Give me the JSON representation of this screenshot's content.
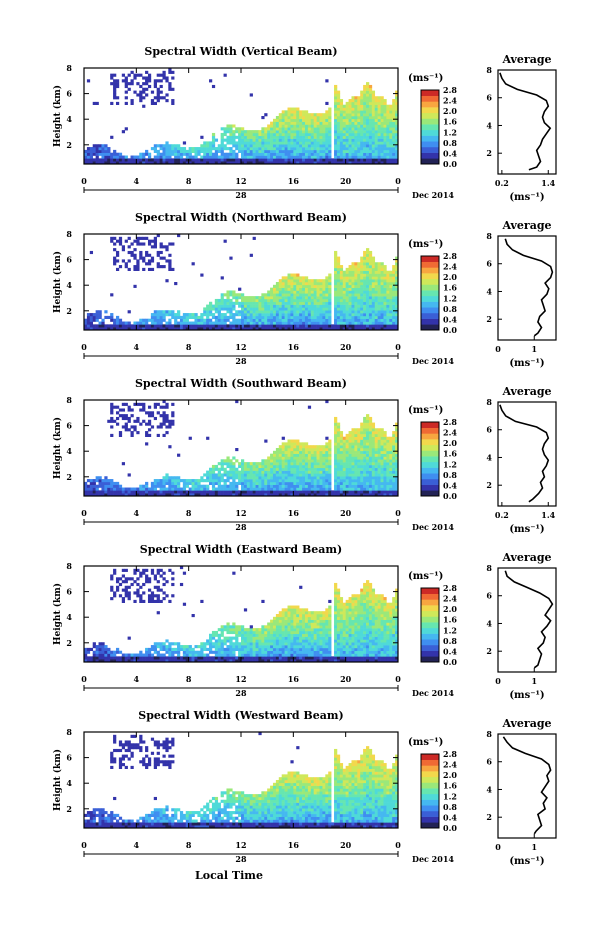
{
  "figure": {
    "xlabel": "Local Time",
    "ylabel": "Height (km)",
    "date_label": "Dec 2014",
    "day_label": "28",
    "colorbar_unit": "(ms⁻¹)",
    "avg_title": "Average",
    "avg_xunit": "(ms⁻¹)"
  },
  "colors": {
    "colormap": [
      "#222255",
      "#3333aa",
      "#3a5fd6",
      "#3f8ef0",
      "#45b8f0",
      "#4fdad8",
      "#66e6b0",
      "#9ae87a",
      "#cfe85a",
      "#f2d84c",
      "#f8a640",
      "#f06a34",
      "#cc2a26"
    ]
  },
  "chart_data": [
    {
      "type": "heatmap",
      "panel": "vertical",
      "title": "Spectral Width (Vertical Beam)",
      "x_ticks": [
        "0",
        "4",
        "8",
        "12",
        "16",
        "20",
        "0"
      ],
      "xlim": [
        0,
        24
      ],
      "y_ticks": [
        "2",
        "4",
        "6",
        "8"
      ],
      "ylim": [
        0.5,
        8
      ],
      "colorbar": {
        "ticks": [
          "0.0",
          "0.4",
          "0.8",
          "1.2",
          "1.6",
          "2.0",
          "2.4",
          "2.8"
        ],
        "range": [
          0,
          2.8
        ]
      },
      "average_profile": {
        "title": "Average",
        "x_ticks": [
          "0.2",
          "1.4"
        ],
        "xlim": [
          0.1,
          1.6
        ],
        "y_ticks": [
          "2",
          "4",
          "6",
          "8"
        ],
        "ylim": [
          0.5,
          8
        ],
        "height": [
          0.8,
          1.0,
          1.4,
          1.8,
          2.2,
          2.6,
          3.0,
          3.4,
          3.8,
          4.2,
          4.6,
          5.0,
          5.4,
          5.8,
          6.2,
          6.6,
          7.0,
          7.4,
          7.8
        ],
        "width": [
          0.9,
          1.1,
          1.2,
          1.15,
          1.1,
          1.2,
          1.25,
          1.35,
          1.45,
          1.3,
          1.25,
          1.3,
          1.4,
          1.35,
          1.1,
          0.6,
          0.3,
          0.2,
          0.15
        ]
      }
    },
    {
      "type": "heatmap",
      "panel": "northward",
      "title": "Spectral Width (Northward Beam)",
      "x_ticks": [
        "0",
        "4",
        "8",
        "12",
        "16",
        "20",
        "0"
      ],
      "xlim": [
        0,
        24
      ],
      "y_ticks": [
        "2",
        "4",
        "6",
        "8"
      ],
      "ylim": [
        0.5,
        8
      ],
      "colorbar": {
        "ticks": [
          "0.0",
          "0.4",
          "0.8",
          "1.2",
          "1.6",
          "2.0",
          "2.4",
          "2.8"
        ],
        "range": [
          0,
          2.8
        ]
      },
      "average_profile": {
        "title": "Average",
        "x_ticks": [
          "0",
          "1"
        ],
        "xlim": [
          0,
          1.6
        ],
        "y_ticks": [
          "2",
          "4",
          "6",
          "8"
        ],
        "ylim": [
          0.5,
          8
        ],
        "height": [
          0.8,
          1.0,
          1.4,
          1.8,
          2.2,
          2.6,
          3.0,
          3.4,
          3.8,
          4.2,
          4.6,
          5.0,
          5.4,
          5.8,
          6.2,
          6.6,
          7.0,
          7.4,
          7.8
        ],
        "width": [
          1.0,
          1.1,
          1.2,
          1.1,
          1.15,
          1.3,
          1.25,
          1.2,
          1.35,
          1.4,
          1.3,
          1.45,
          1.5,
          1.45,
          1.2,
          0.7,
          0.4,
          0.25,
          0.2
        ]
      }
    },
    {
      "type": "heatmap",
      "panel": "southward",
      "title": "Spectral Width (Southward Beam)",
      "x_ticks": [
        "0",
        "4",
        "8",
        "12",
        "16",
        "20",
        "0"
      ],
      "xlim": [
        0,
        24
      ],
      "y_ticks": [
        "2",
        "4",
        "6",
        "8"
      ],
      "ylim": [
        0.5,
        8
      ],
      "colorbar": {
        "ticks": [
          "0.0",
          "0.4",
          "0.8",
          "1.2",
          "1.6",
          "2.0",
          "2.4",
          "2.8"
        ],
        "range": [
          0,
          2.8
        ]
      },
      "average_profile": {
        "title": "Average",
        "x_ticks": [
          "0.2",
          "1.4"
        ],
        "xlim": [
          0.1,
          1.6
        ],
        "y_ticks": [
          "2",
          "4",
          "6",
          "8"
        ],
        "ylim": [
          0.5,
          8
        ],
        "height": [
          0.8,
          1.0,
          1.4,
          1.8,
          2.2,
          2.6,
          3.0,
          3.4,
          3.8,
          4.2,
          4.6,
          5.0,
          5.4,
          5.8,
          6.2,
          6.6,
          7.0,
          7.4,
          7.8
        ],
        "width": [
          0.9,
          1.0,
          1.15,
          1.25,
          1.2,
          1.3,
          1.25,
          1.35,
          1.4,
          1.3,
          1.25,
          1.3,
          1.4,
          1.35,
          1.1,
          0.55,
          0.3,
          0.2,
          0.15
        ]
      }
    },
    {
      "type": "heatmap",
      "panel": "eastward",
      "title": "Spectral Width (Eastward Beam)",
      "x_ticks": [
        "0",
        "4",
        "8",
        "12",
        "16",
        "20",
        "0"
      ],
      "xlim": [
        0,
        24
      ],
      "y_ticks": [
        "2",
        "4",
        "6",
        "8"
      ],
      "ylim": [
        0.5,
        8
      ],
      "colorbar": {
        "ticks": [
          "0.0",
          "0.4",
          "0.8",
          "1.2",
          "1.6",
          "2.0",
          "2.4",
          "2.8"
        ],
        "range": [
          0,
          2.8
        ]
      },
      "average_profile": {
        "title": "Average",
        "x_ticks": [
          "0",
          "1"
        ],
        "xlim": [
          0,
          1.6
        ],
        "y_ticks": [
          "2",
          "4",
          "6",
          "8"
        ],
        "ylim": [
          0.5,
          8
        ],
        "height": [
          0.8,
          1.0,
          1.4,
          1.8,
          2.2,
          2.6,
          3.0,
          3.4,
          3.8,
          4.2,
          4.6,
          5.0,
          5.4,
          5.8,
          6.2,
          6.6,
          7.0,
          7.4,
          7.8
        ],
        "width": [
          1.0,
          1.1,
          1.15,
          1.2,
          1.1,
          1.25,
          1.3,
          1.2,
          1.35,
          1.45,
          1.3,
          1.4,
          1.5,
          1.4,
          1.15,
          0.8,
          0.45,
          0.25,
          0.2
        ]
      }
    },
    {
      "type": "heatmap",
      "panel": "westward",
      "title": "Spectral Width (Westward Beam)",
      "x_ticks": [
        "0",
        "4",
        "8",
        "12",
        "16",
        "20",
        "0"
      ],
      "xlim": [
        0,
        24
      ],
      "y_ticks": [
        "2",
        "4",
        "6",
        "8"
      ],
      "ylim": [
        0.5,
        8
      ],
      "colorbar": {
        "ticks": [
          "0.0",
          "0.4",
          "0.8",
          "1.2",
          "1.6",
          "2.0",
          "2.4",
          "2.8"
        ],
        "range": [
          0,
          2.8
        ]
      },
      "average_profile": {
        "title": "Average",
        "x_ticks": [
          "0",
          "1"
        ],
        "xlim": [
          0,
          1.6
        ],
        "y_ticks": [
          "2",
          "4",
          "6",
          "8"
        ],
        "ylim": [
          0.5,
          8
        ],
        "height": [
          0.8,
          1.0,
          1.4,
          1.8,
          2.2,
          2.6,
          3.0,
          3.4,
          3.8,
          4.2,
          4.6,
          5.0,
          5.4,
          5.8,
          6.2,
          6.6,
          7.0,
          7.4,
          7.8
        ],
        "width": [
          1.0,
          1.05,
          1.2,
          1.15,
          1.1,
          1.3,
          1.25,
          1.35,
          1.2,
          1.3,
          1.4,
          1.35,
          1.45,
          1.4,
          1.2,
          0.75,
          0.4,
          0.25,
          0.15
        ]
      }
    }
  ]
}
